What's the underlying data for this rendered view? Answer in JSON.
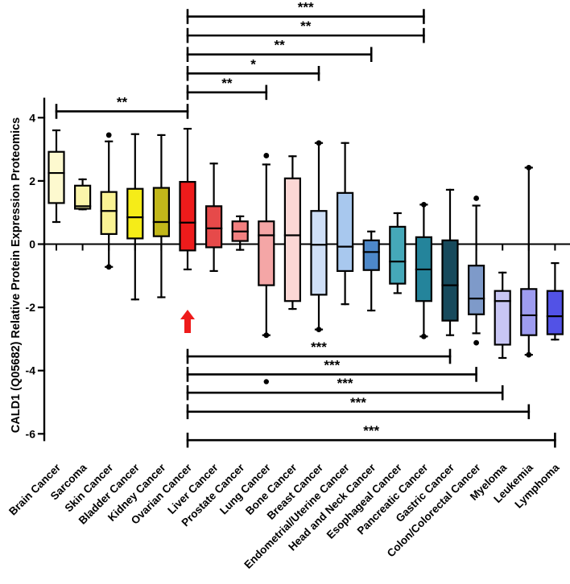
{
  "chart_data": {
    "type": "boxplot",
    "title": "",
    "xlabel": "",
    "ylabel": "CALD1 (Q05682) Relative Protein Expression Proteomics",
    "ylim": [
      -6.2,
      4.6
    ],
    "yticks": [
      4,
      2,
      0,
      -2,
      -4,
      -6
    ],
    "reference_category": "Ovarian Cancer",
    "reference_marker": "red-arrow",
    "categories": [
      "Brain Cancer",
      "Sarcoma",
      "Skin Cancer",
      "Bladder Cancer",
      "Kidney Cancer",
      "Ovarian Cancer",
      "Liver Cancer",
      "Prostate Cancer",
      "Lung Cancer",
      "Bone Cancer",
      "Breast Cancer",
      "Endometrial/Uterine Cancer",
      "Head and Neck Cancer",
      "Esophageal Cancer",
      "Pancreatic Cancer",
      "Gastric Cancer",
      "Colon/Colorectal Cancer",
      "Myeloma",
      "Leukemia",
      "Lymphoma"
    ],
    "boxes": [
      {
        "name": "Brain Cancer",
        "color": "#fdf9cf",
        "whisker_low": 0.7,
        "q1": 1.3,
        "median": 2.25,
        "q3": 2.92,
        "whisker_high": 3.6,
        "outliers": []
      },
      {
        "name": "Sarcoma",
        "color": "#faf4aa",
        "whisker_low": 1.1,
        "q1": 1.12,
        "median": 1.2,
        "q3": 1.85,
        "whisker_high": 2.05,
        "outliers": []
      },
      {
        "name": "Skin Cancer",
        "color": "#faf394",
        "whisker_low": -0.72,
        "q1": 0.32,
        "median": 1.05,
        "q3": 1.65,
        "whisker_high": 3.25,
        "outliers": [
          3.45,
          -0.72
        ]
      },
      {
        "name": "Bladder Cancer",
        "color": "#f5ec18",
        "whisker_low": -1.75,
        "q1": 0.18,
        "median": 0.85,
        "q3": 1.75,
        "whisker_high": 3.48,
        "outliers": []
      },
      {
        "name": "Kidney Cancer",
        "color": "#c2b71a",
        "whisker_low": -1.68,
        "q1": 0.25,
        "median": 0.7,
        "q3": 1.78,
        "whisker_high": 3.45,
        "outliers": []
      },
      {
        "name": "Ovarian Cancer",
        "color": "#ee1b1b",
        "whisker_low": -0.8,
        "q1": -0.2,
        "median": 0.68,
        "q3": 1.97,
        "whisker_high": 3.65,
        "outliers": []
      },
      {
        "name": "Liver Cancer",
        "color": "#e64a4a",
        "whisker_low": -0.85,
        "q1": -0.1,
        "median": 0.5,
        "q3": 1.2,
        "whisker_high": 2.55,
        "outliers": []
      },
      {
        "name": "Prostate Cancer",
        "color": "#f28080",
        "whisker_low": -0.18,
        "q1": 0.1,
        "median": 0.4,
        "q3": 0.72,
        "whisker_high": 0.88,
        "outliers": []
      },
      {
        "name": "Lung Cancer",
        "color": "#f4a6a6",
        "whisker_low": -2.88,
        "q1": -1.3,
        "median": 0.28,
        "q3": 0.72,
        "whisker_high": 2.52,
        "outliers": [
          2.8,
          -2.88
        ]
      },
      {
        "name": "Bone Cancer",
        "color": "#fbd7d5",
        "whisker_low": -2.05,
        "q1": -1.8,
        "median": 0.28,
        "q3": 2.08,
        "whisker_high": 2.78,
        "outliers": []
      },
      {
        "name": "Breast Cancer",
        "color": "#cfdff6",
        "whisker_low": -2.7,
        "q1": -1.6,
        "median": -0.02,
        "q3": 1.05,
        "whisker_high": 3.2,
        "outliers": [
          3.2,
          -2.7
        ]
      },
      {
        "name": "Endometrial/Uterine Cancer",
        "color": "#a8c8ee",
        "whisker_low": -1.9,
        "q1": -0.85,
        "median": -0.08,
        "q3": 1.62,
        "whisker_high": 3.2,
        "outliers": []
      },
      {
        "name": "Head and Neck Cancer",
        "color": "#4d88c9",
        "whisker_low": -2.1,
        "q1": -0.82,
        "median": -0.25,
        "q3": 0.12,
        "whisker_high": 0.4,
        "outliers": []
      },
      {
        "name": "Esophageal Cancer",
        "color": "#45a8b9",
        "whisker_low": -1.55,
        "q1": -1.25,
        "median": -0.55,
        "q3": 0.55,
        "whisker_high": 0.98,
        "outliers": []
      },
      {
        "name": "Pancreatic Cancer",
        "color": "#24849b",
        "whisker_low": -2.92,
        "q1": -1.8,
        "median": -0.8,
        "q3": 0.22,
        "whisker_high": 1.25,
        "outliers": [
          1.25,
          -2.92
        ]
      },
      {
        "name": "Gastric Cancer",
        "color": "#174a5c",
        "whisker_low": -2.88,
        "q1": -2.42,
        "median": -1.3,
        "q3": 0.12,
        "whisker_high": 1.72,
        "outliers": []
      },
      {
        "name": "Colon/Colorectal Cancer",
        "color": "#7e9ac9",
        "whisker_low": -2.82,
        "q1": -2.22,
        "median": -1.72,
        "q3": -0.68,
        "whisker_high": 1.22,
        "outliers": [
          1.45,
          -3.12
        ]
      },
      {
        "name": "Myeloma",
        "color": "#c8c6f4",
        "whisker_low": -3.6,
        "q1": -3.18,
        "median": -1.8,
        "q3": -1.48,
        "whisker_high": -0.9,
        "outliers": []
      },
      {
        "name": "Leukemia",
        "color": "#9e9cf0",
        "whisker_low": -3.5,
        "q1": -2.88,
        "median": -2.25,
        "q3": -1.42,
        "whisker_high": 2.42,
        "outliers": [
          2.42,
          -3.5
        ]
      },
      {
        "name": "Lymphoma",
        "color": "#5252e6",
        "whisker_low": -3.02,
        "q1": -2.85,
        "median": -2.28,
        "q3": -1.48,
        "whisker_high": -0.6,
        "outliers": []
      }
    ],
    "stray_points": [
      {
        "category": "Lung Cancer",
        "y": -4.35
      }
    ],
    "significance_above": [
      {
        "from": "Brain Cancer",
        "to": "Ovarian Cancer",
        "label": "**",
        "y": 4.2
      },
      {
        "from": "Ovarian Cancer",
        "to": "Lung Cancer",
        "label": "**",
        "y": 4.8
      },
      {
        "from": "Ovarian Cancer",
        "to": "Breast Cancer",
        "label": "*",
        "y": 5.4
      },
      {
        "from": "Ovarian Cancer",
        "to": "Head and Neck Cancer",
        "label": "**",
        "y": 6.0
      },
      {
        "from": "Ovarian Cancer",
        "to": "Pancreatic Cancer",
        "label": "**",
        "y": 6.6
      },
      {
        "from": "Ovarian Cancer",
        "to": "Pancreatic Cancer",
        "label": "***",
        "y": 7.2
      }
    ],
    "significance_below": [
      {
        "from": "Ovarian Cancer",
        "to": "Gastric Cancer",
        "label": "***",
        "y": -3.55
      },
      {
        "from": "Ovarian Cancer",
        "to": "Colon/Colorectal Cancer",
        "label": "***",
        "y": -4.12
      },
      {
        "from": "Ovarian Cancer",
        "to": "Myeloma",
        "label": "***",
        "y": -4.7
      },
      {
        "from": "Ovarian Cancer",
        "to": "Leukemia",
        "label": "***",
        "y": -5.3
      },
      {
        "from": "Ovarian Cancer",
        "to": "Lymphoma",
        "label": "***",
        "y": -6.2
      }
    ]
  }
}
